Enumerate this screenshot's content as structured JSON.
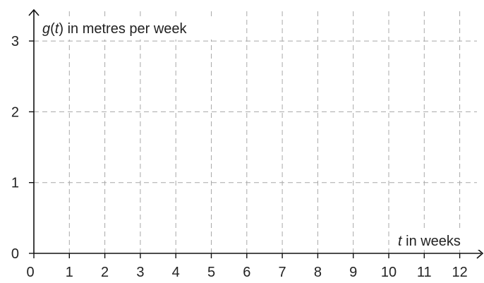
{
  "chart_data": {
    "type": "line",
    "title": "",
    "xlabel_var": "t",
    "xlabel_rest": " in weeks",
    "ylabel_func": "g",
    "ylabel_open": "(",
    "ylabel_arg": "t",
    "ylabel_close": ")",
    "ylabel_rest": " in metres per week",
    "xlim": [
      0,
      12.7
    ],
    "ylim": [
      0,
      3.2
    ],
    "x_ticks": [
      0,
      1,
      2,
      3,
      4,
      5,
      6,
      7,
      8,
      9,
      10,
      11,
      12
    ],
    "y_ticks": [
      0,
      1,
      2,
      3
    ],
    "grid": true,
    "series": []
  }
}
